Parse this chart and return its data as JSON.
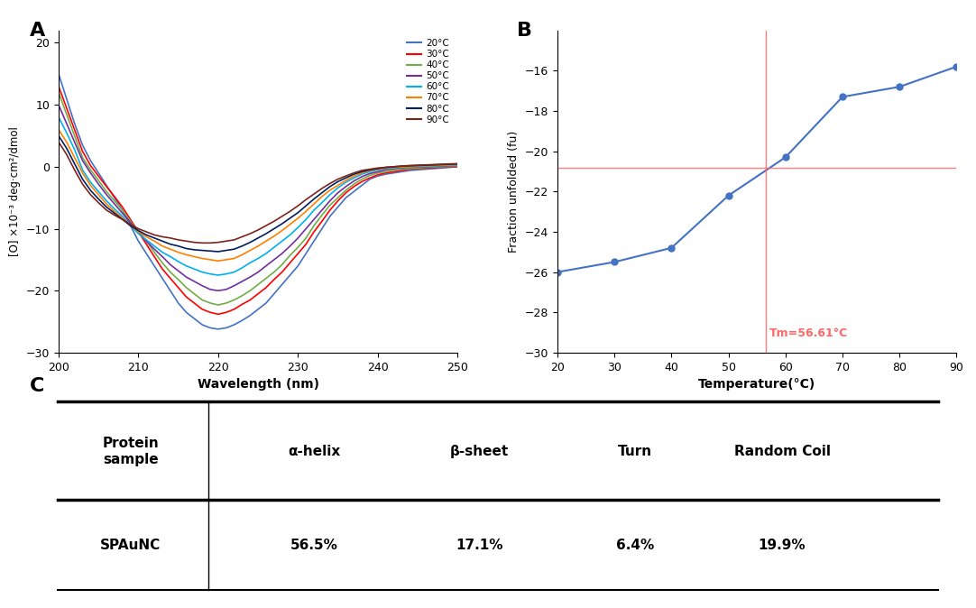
{
  "panel_A": {
    "title": "A",
    "xlabel": "Wavelength (nm)",
    "ylabel": "[O] ×10⁻³ deg·cm²/dmol",
    "xlim": [
      200,
      250
    ],
    "ylim": [
      -30,
      22
    ],
    "yticks": [
      -30,
      -20,
      -10,
      0,
      10,
      20
    ],
    "xticks": [
      200,
      210,
      220,
      230,
      240,
      250
    ],
    "temperatures": [
      "20°C",
      "30°C",
      "40°C",
      "50°C",
      "60°C",
      "70°C",
      "80°C",
      "90°C"
    ],
    "colors": [
      "#4472C4",
      "#FF0000",
      "#70AD47",
      "#7030A0",
      "#00B0F0",
      "#FF8000",
      "#002060",
      "#7B241C"
    ],
    "wavelengths": [
      200,
      201,
      202,
      203,
      204,
      205,
      206,
      207,
      208,
      209,
      210,
      211,
      212,
      213,
      214,
      215,
      216,
      217,
      218,
      219,
      220,
      221,
      222,
      223,
      224,
      225,
      226,
      227,
      228,
      229,
      230,
      231,
      232,
      233,
      234,
      235,
      236,
      237,
      238,
      239,
      240,
      241,
      242,
      243,
      244,
      245,
      246,
      247,
      248,
      249,
      250
    ],
    "curves": {
      "20": [
        15,
        11,
        7,
        3.5,
        1,
        -1,
        -3,
        -5,
        -7,
        -9.5,
        -12,
        -14,
        -16,
        -18,
        -20,
        -22,
        -23.5,
        -24.5,
        -25.5,
        -26,
        -26.2,
        -26,
        -25.5,
        -24.8,
        -24,
        -23,
        -22,
        -20.5,
        -19,
        -17.5,
        -16,
        -14,
        -12,
        -10,
        -8,
        -6.5,
        -5,
        -4,
        -3,
        -2,
        -1.5,
        -1.2,
        -1,
        -0.8,
        -0.6,
        -0.5,
        -0.4,
        -0.3,
        -0.2,
        -0.1,
        0
      ],
      "30": [
        13,
        9.5,
        6,
        2.5,
        0.2,
        -1.5,
        -3.2,
        -4.8,
        -6.5,
        -8.5,
        -10.5,
        -12.5,
        -14.5,
        -16.5,
        -18,
        -19.5,
        -21,
        -22,
        -23,
        -23.5,
        -23.8,
        -23.5,
        -23,
        -22.2,
        -21.5,
        -20.5,
        -19.5,
        -18.2,
        -17,
        -15.5,
        -14,
        -12.5,
        -10.5,
        -8.8,
        -7,
        -5.5,
        -4.2,
        -3.2,
        -2.4,
        -1.8,
        -1.3,
        -1,
        -0.8,
        -0.6,
        -0.4,
        -0.3,
        -0.2,
        -0.15,
        -0.1,
        -0.05,
        0
      ],
      "40": [
        12,
        8.5,
        5,
        1.5,
        -0.5,
        -2.2,
        -4,
        -5.5,
        -7,
        -8.8,
        -10.5,
        -12,
        -13.8,
        -15.5,
        -17,
        -18.2,
        -19.5,
        -20.5,
        -21.5,
        -22,
        -22.3,
        -22,
        -21.5,
        -20.8,
        -20,
        -19,
        -18,
        -17,
        -15.8,
        -14.3,
        -13,
        -11.5,
        -9.5,
        -7.8,
        -6.2,
        -5,
        -3.8,
        -2.8,
        -2,
        -1.4,
        -1,
        -0.8,
        -0.5,
        -0.4,
        -0.3,
        -0.2,
        -0.1,
        -0.05,
        0,
        0.05,
        0.1
      ],
      "50": [
        10,
        7,
        4,
        1,
        -1,
        -2.8,
        -4.5,
        -6,
        -7.5,
        -9,
        -10.5,
        -12,
        -13.3,
        -14.5,
        -15.8,
        -16.8,
        -17.8,
        -18.5,
        -19.2,
        -19.8,
        -20,
        -19.8,
        -19.2,
        -18.5,
        -17.8,
        -17,
        -16,
        -15,
        -14,
        -12.8,
        -11.5,
        -10,
        -8.5,
        -7,
        -5.5,
        -4.2,
        -3.2,
        -2.3,
        -1.6,
        -1.1,
        -0.8,
        -0.5,
        -0.3,
        -0.2,
        -0.1,
        -0.05,
        0,
        0.05,
        0.1,
        0.15,
        0.2
      ],
      "60": [
        8,
        5.5,
        2.8,
        -0.5,
        -2.5,
        -4,
        -5.5,
        -6.8,
        -8,
        -9.5,
        -10.8,
        -11.8,
        -12.8,
        -13.8,
        -14.5,
        -15.3,
        -16,
        -16.5,
        -17,
        -17.3,
        -17.5,
        -17.3,
        -17,
        -16.3,
        -15.5,
        -14.8,
        -14,
        -13,
        -12,
        -11,
        -9.8,
        -8.5,
        -7,
        -5.8,
        -4.5,
        -3.4,
        -2.5,
        -1.8,
        -1.2,
        -0.8,
        -0.5,
        -0.3,
        -0.2,
        -0.1,
        -0.05,
        0,
        0.05,
        0.1,
        0.15,
        0.2,
        0.25
      ],
      "70": [
        6,
        4,
        1.5,
        -1,
        -3,
        -4.5,
        -6,
        -7.2,
        -8.3,
        -9.5,
        -10.5,
        -11.3,
        -12,
        -12.8,
        -13.3,
        -13.8,
        -14.2,
        -14.5,
        -14.8,
        -15,
        -15.2,
        -15,
        -14.8,
        -14.2,
        -13.5,
        -12.8,
        -12,
        -11.2,
        -10.3,
        -9.3,
        -8.3,
        -7.2,
        -6,
        -4.8,
        -3.8,
        -3,
        -2.2,
        -1.5,
        -1,
        -0.6,
        -0.4,
        -0.2,
        -0.1,
        -0.05,
        0,
        0.1,
        0.15,
        0.2,
        0.25,
        0.3,
        0.35
      ],
      "80": [
        5,
        3,
        0.5,
        -2,
        -3.8,
        -5.2,
        -6.5,
        -7.5,
        -8.5,
        -9.5,
        -10.3,
        -11,
        -11.5,
        -12,
        -12.5,
        -12.8,
        -13.2,
        -13.4,
        -13.5,
        -13.6,
        -13.7,
        -13.5,
        -13.3,
        -12.8,
        -12.2,
        -11.5,
        -10.8,
        -10,
        -9.2,
        -8.3,
        -7.4,
        -6.3,
        -5.2,
        -4.2,
        -3.2,
        -2.4,
        -1.8,
        -1.2,
        -0.8,
        -0.5,
        -0.3,
        -0.1,
        0,
        0.1,
        0.15,
        0.2,
        0.25,
        0.3,
        0.35,
        0.4,
        0.45
      ],
      "90": [
        4,
        2,
        -0.5,
        -2.8,
        -4.5,
        -5.8,
        -7,
        -7.8,
        -8.5,
        -9.3,
        -10,
        -10.5,
        -11,
        -11.3,
        -11.5,
        -11.8,
        -12,
        -12.2,
        -12.3,
        -12.3,
        -12.2,
        -12,
        -11.8,
        -11.3,
        -10.8,
        -10.2,
        -9.5,
        -8.8,
        -8,
        -7.2,
        -6.3,
        -5.3,
        -4.4,
        -3.5,
        -2.7,
        -2,
        -1.5,
        -1,
        -0.6,
        -0.4,
        -0.2,
        -0.1,
        0,
        0.1,
        0.2,
        0.25,
        0.3,
        0.35,
        0.4,
        0.45,
        0.5
      ]
    }
  },
  "panel_B": {
    "title": "B",
    "xlabel": "Temperature(°C)",
    "ylabel": "Fraction unfolded (fu)",
    "xlim": [
      20,
      90
    ],
    "ylim": [
      -30,
      -14
    ],
    "yticks": [
      -30,
      -28,
      -26,
      -24,
      -22,
      -20,
      -18,
      -16
    ],
    "xticks": [
      20,
      30,
      40,
      50,
      60,
      70,
      80,
      90
    ],
    "temperatures": [
      20,
      30,
      40,
      50,
      60,
      70,
      80,
      90
    ],
    "cd_values": [
      -26.0,
      -25.5,
      -24.8,
      -22.2,
      -20.3,
      -17.3,
      -16.8,
      -15.8
    ],
    "tm": 56.61,
    "tm_label": "Tm=56.61°C",
    "line_color": "#4472C4",
    "tm_color": "#FF6666",
    "hline_y": -20.8
  },
  "panel_C": {
    "title": "C",
    "col_headers": [
      "Protein\nsample",
      "α-helix",
      "β-sheet",
      "Turn",
      "Random Coil"
    ],
    "row_data": [
      [
        "SPAuNC",
        "56.5%",
        "17.1%",
        "6.4%",
        "19.9%"
      ]
    ]
  }
}
